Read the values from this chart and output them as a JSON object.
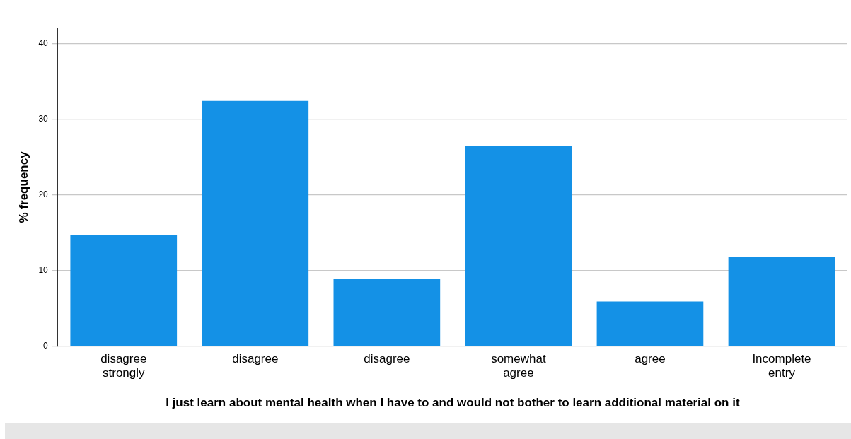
{
  "chart_data": {
    "type": "bar",
    "xlabel": "I just learn about mental health when I have to and would not bother to learn additional material on it",
    "ylabel": "% frequency",
    "categories": [
      "disagree strongly",
      "disagree",
      "disagree",
      "somewhat agree",
      "agree",
      "Incomplete entry"
    ],
    "values": [
      14.7,
      32.4,
      8.9,
      26.5,
      5.9,
      11.8
    ],
    "color": "#1491e6",
    "ylim": [
      0,
      42
    ],
    "yticks": [
      0,
      10,
      20,
      30,
      40
    ],
    "grid": "y"
  }
}
